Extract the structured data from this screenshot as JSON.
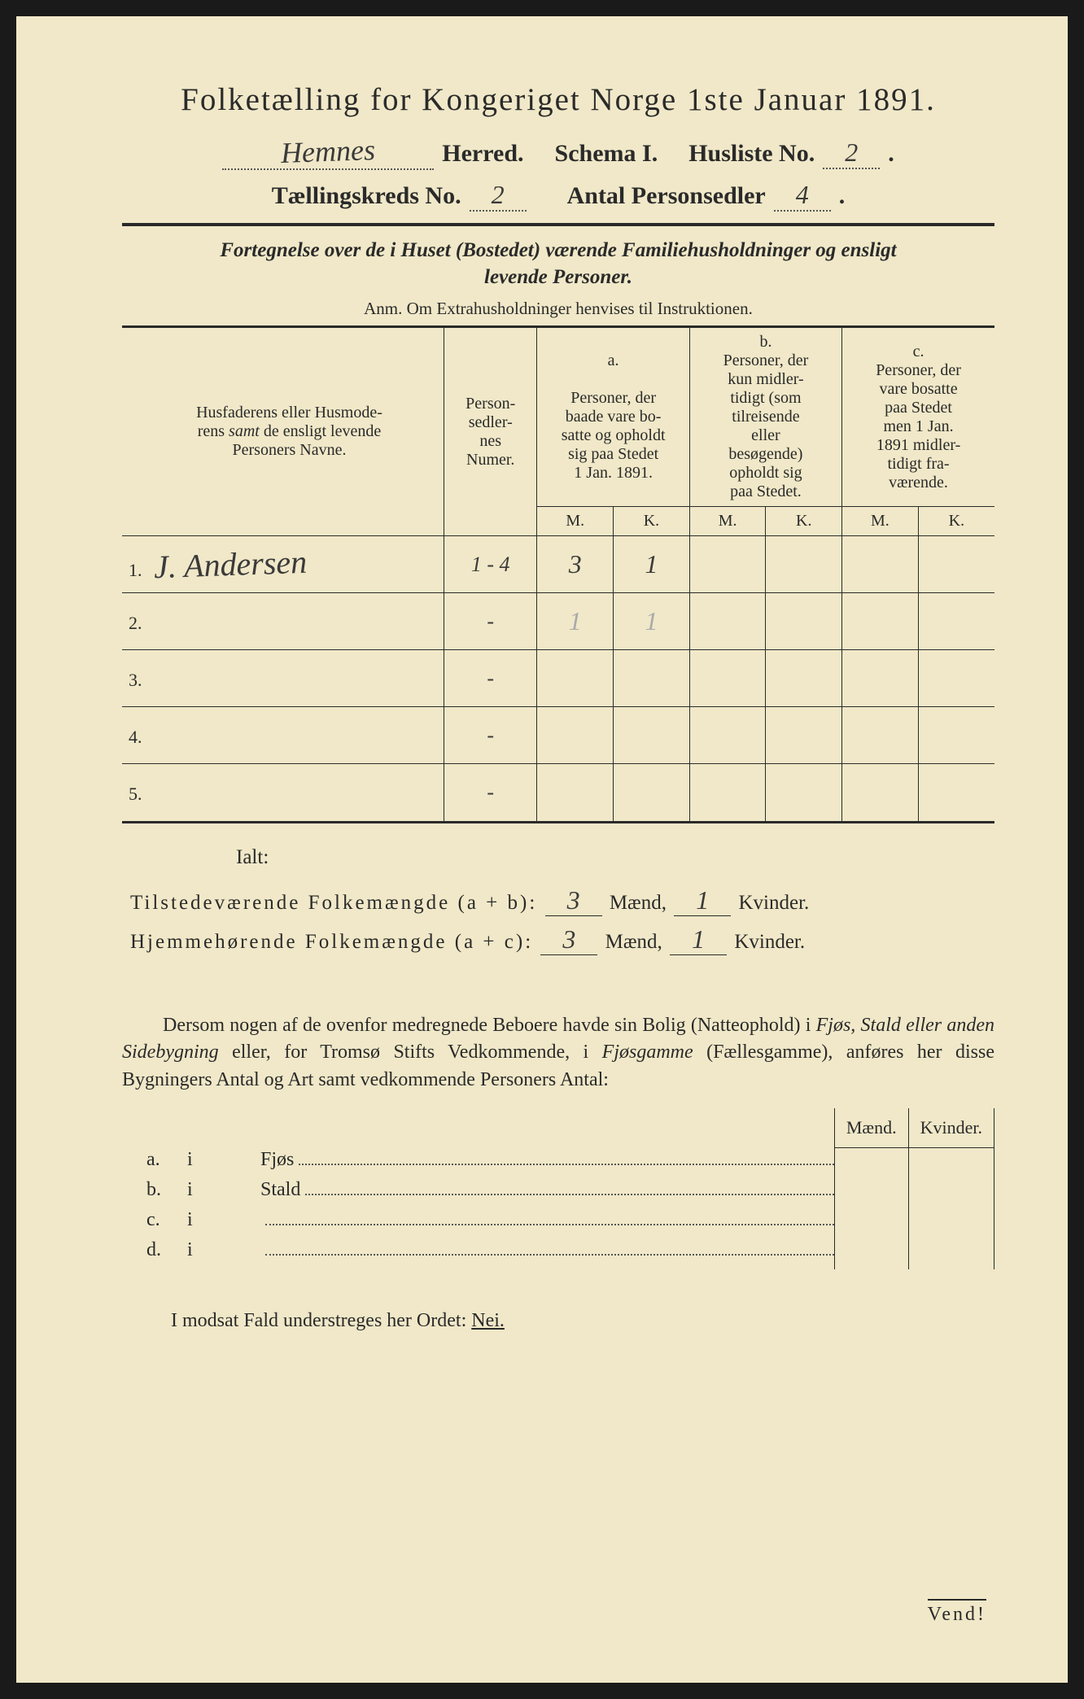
{
  "title": "Folketælling for Kongeriget Norge 1ste Januar 1891.",
  "herred_name_hw": "Hemnes",
  "herred_label": "Herred.",
  "schema_label": "Schema I.",
  "husliste_label": "Husliste No.",
  "husliste_no_hw": "2",
  "kreds_label": "Tællingskreds No.",
  "kreds_no_hw": "2",
  "antal_label": "Antal Personsedler",
  "antal_hw": "4",
  "subtitle_line1": "Fortegnelse over de i Huset (Bostedet) værende Familiehusholdninger og ensligt",
  "subtitle_line2": "levende Personer.",
  "anm": "Anm.  Om Extrahusholdninger henvises til Instruktionen.",
  "headers": {
    "names_l1": "Husfaderens eller Husmode-",
    "names_l2": "rens",
    "names_samt": "samt",
    "names_l2b": "de ensligt levende",
    "names_l3": "Personers Navne.",
    "numer_l1": "Person-",
    "numer_l2": "sedler-",
    "numer_l3": "nes",
    "numer_l4": "Numer.",
    "a_label": "a.",
    "a_l1": "Personer, der",
    "a_l2": "baade vare bo-",
    "a_l3": "satte og opholdt",
    "a_l4": "sig paa Stedet",
    "a_l5": "1 Jan. 1891.",
    "b_label": "b.",
    "b_l1": "Personer, der",
    "b_l2": "kun midler-",
    "b_l3": "tidigt (som",
    "b_l4": "tilreisende",
    "b_l5": "eller",
    "b_l6": "besøgende)",
    "b_l7": "opholdt sig",
    "b_l8": "paa Stedet.",
    "c_label": "c.",
    "c_l1": "Personer, der",
    "c_l2": "vare bosatte",
    "c_l3": "paa Stedet",
    "c_l4": "men 1 Jan.",
    "c_l5": "1891 midler-",
    "c_l6": "tidigt fra-",
    "c_l7": "værende.",
    "M": "M.",
    "K": "K."
  },
  "rows": [
    {
      "n": "1.",
      "name_hw": "J. Andersen",
      "numer": "1 - 4",
      "aM": "3",
      "aK": "1",
      "bM": "",
      "bK": "",
      "cM": "",
      "cK": ""
    },
    {
      "n": "2.",
      "name_hw": "",
      "numer": "-",
      "aM": "",
      "aK": "",
      "bM": "",
      "bK": "",
      "cM": "",
      "cK": "",
      "faint_aM": "1",
      "faint_aK": "1"
    },
    {
      "n": "3.",
      "name_hw": "",
      "numer": "-",
      "aM": "",
      "aK": "",
      "bM": "",
      "bK": "",
      "cM": "",
      "cK": ""
    },
    {
      "n": "4.",
      "name_hw": "",
      "numer": "-",
      "aM": "",
      "aK": "",
      "bM": "",
      "bK": "",
      "cM": "",
      "cK": ""
    },
    {
      "n": "5.",
      "name_hw": "",
      "numer": "-",
      "aM": "",
      "aK": "",
      "bM": "",
      "bK": "",
      "cM": "",
      "cK": ""
    }
  ],
  "ialt": "Ialt:",
  "totals": {
    "tilstede_label": "Tilstedeværende Folkemængde (a + b):",
    "hjemme_label": "Hjemmehørende Folkemængde (a + c):",
    "maend": "Mænd,",
    "kvinder": "Kvinder.",
    "t_m": "3",
    "t_k": "1",
    "h_m": "3",
    "h_k": "1"
  },
  "para": "Dersom nogen af de ovenfor medregnede Beboere havde sin Bolig (Natteophold) i Fjøs, Stald eller anden Sidebygning eller, for Tromsø Stifts Vedkommende, i Fjøsgamme (Fællesgamme), anføres her disse Bygningers Antal og Art samt vedkommende Personers Antal:",
  "mk": {
    "m": "Mænd.",
    "k": "Kvinder."
  },
  "sidebldg": [
    {
      "a": "a.",
      "i": "i",
      "label": "Fjøs"
    },
    {
      "a": "b.",
      "i": "i",
      "label": "Stald"
    },
    {
      "a": "c.",
      "i": "i",
      "label": ""
    },
    {
      "a": "d.",
      "i": "i",
      "label": ""
    }
  ],
  "nei_line_pre": "I modsat Fald understreges her Ordet: ",
  "nei": "Nei.",
  "vend": "Vend!",
  "colors": {
    "paper": "#f0e8c8",
    "ink": "#2a2a2a",
    "faint": "#b0a890"
  }
}
